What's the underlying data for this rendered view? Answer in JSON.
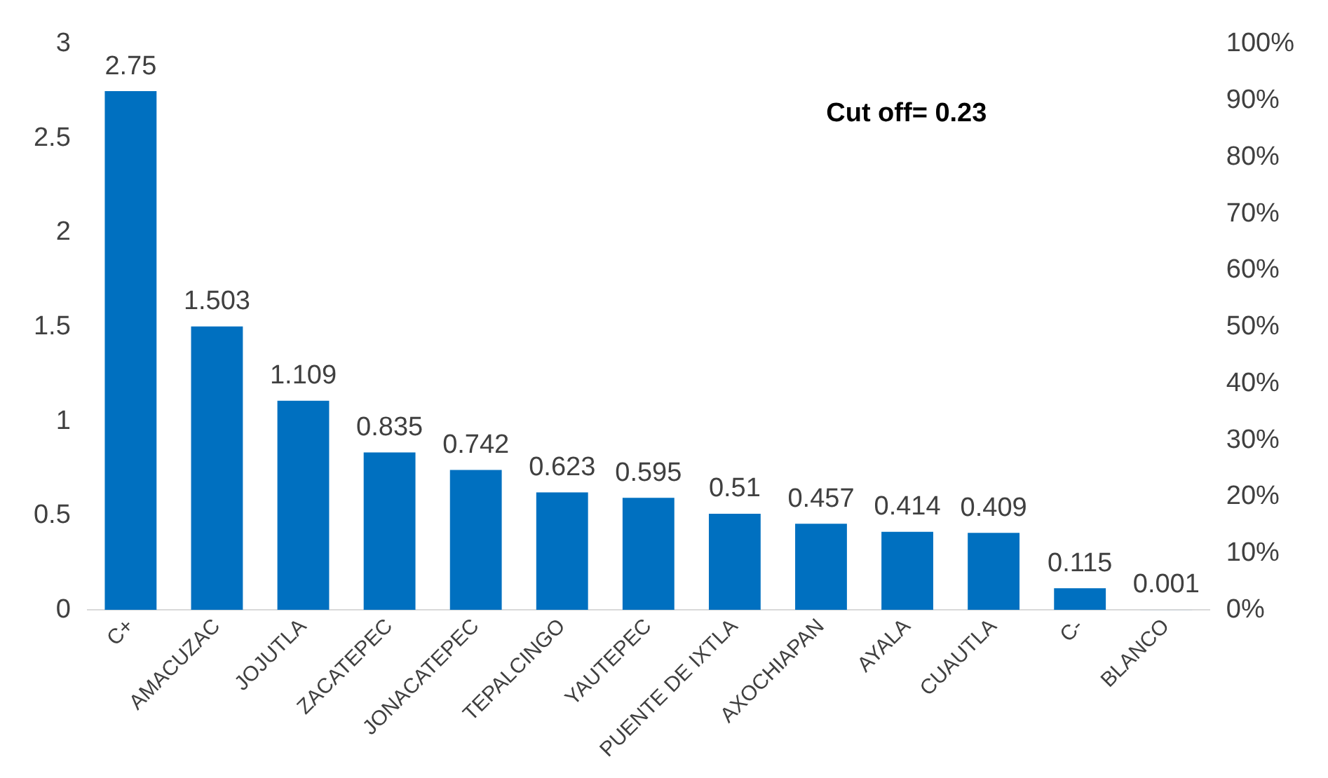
{
  "chart_data": {
    "type": "bar",
    "categories": [
      "C+",
      "AMACUZAC",
      "JOJUTLA",
      "ZACATEPEC",
      "JONACATEPEC",
      "TEPALCINGO",
      "YAUTEPEC",
      "PUENTE DE IXTLA",
      "AXOCHIAPAN",
      "AYALA",
      "CUAUTLA",
      "C-",
      "BLANCO"
    ],
    "values": [
      2.75,
      1.503,
      1.109,
      0.835,
      0.742,
      0.623,
      0.595,
      0.51,
      0.457,
      0.414,
      0.409,
      0.115,
      0.001
    ],
    "color": "#0070c0",
    "ylim": [
      0,
      3
    ],
    "yticks": [
      0,
      0.5,
      1,
      1.5,
      2,
      2.5,
      3
    ],
    "y2lim": [
      0,
      100
    ],
    "y2ticks": [
      {
        "value": 0,
        "label": "0%"
      },
      {
        "value": 10,
        "label": "10%"
      },
      {
        "value": 20,
        "label": "20%"
      },
      {
        "value": 30,
        "label": "30%"
      },
      {
        "value": 40,
        "label": "40%"
      },
      {
        "value": 50,
        "label": "50%"
      },
      {
        "value": 60,
        "label": "60%"
      },
      {
        "value": 70,
        "label": "70%"
      },
      {
        "value": 80,
        "label": "80%"
      },
      {
        "value": 90,
        "label": "90%"
      },
      {
        "value": 100,
        "label": "100%"
      }
    ],
    "data_labels": true,
    "grid": false,
    "annotations": [
      "Cut off= 0.23"
    ]
  }
}
